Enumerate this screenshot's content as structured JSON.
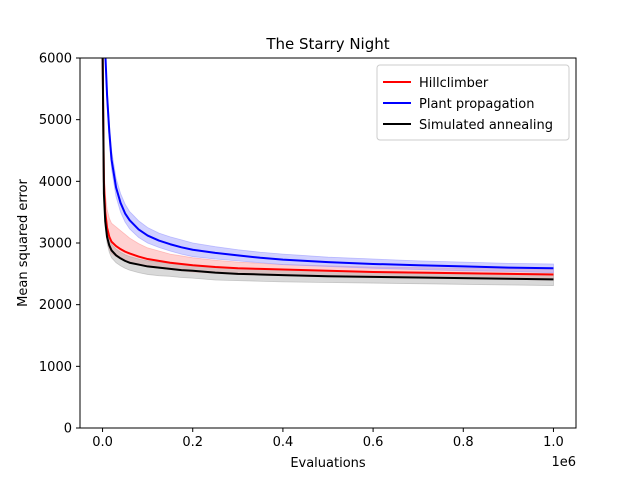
{
  "chart_data": {
    "type": "line",
    "title": "The Starry Night",
    "xlabel": "Evaluations",
    "ylabel": "Mean squared error",
    "x_offset_label": "1e6",
    "xlim": [
      -0.05,
      1.05
    ],
    "ylim": [
      0,
      6000
    ],
    "x_ticks": [
      0.0,
      0.2,
      0.4,
      0.6,
      0.8,
      1.0
    ],
    "x_tick_labels": [
      "0.0",
      "0.2",
      "0.4",
      "0.6",
      "0.8",
      "1.0"
    ],
    "y_ticks": [
      0,
      1000,
      2000,
      3000,
      4000,
      5000,
      6000
    ],
    "y_tick_labels": [
      "0",
      "1000",
      "2000",
      "3000",
      "4000",
      "5000",
      "6000"
    ],
    "grid": false,
    "legend_position": "upper-right",
    "x": [
      0.0,
      0.003,
      0.006,
      0.01,
      0.015,
      0.02,
      0.03,
      0.04,
      0.05,
      0.06,
      0.08,
      0.1,
      0.125,
      0.15,
      0.175,
      0.2,
      0.25,
      0.3,
      0.35,
      0.4,
      0.5,
      0.6,
      0.7,
      0.8,
      0.9,
      1.0
    ],
    "series": [
      {
        "name": "Hillclimber",
        "color": "#ff0000",
        "fill_color": "#ff9999",
        "values": [
          6200,
          4000,
          3500,
          3250,
          3100,
          3020,
          2950,
          2900,
          2860,
          2830,
          2780,
          2740,
          2710,
          2680,
          2660,
          2640,
          2610,
          2590,
          2580,
          2570,
          2550,
          2530,
          2520,
          2510,
          2500,
          2490
        ],
        "upper": [
          6300,
          4300,
          3800,
          3550,
          3400,
          3320,
          3260,
          3200,
          3140,
          3080,
          2990,
          2920,
          2870,
          2820,
          2790,
          2760,
          2720,
          2690,
          2670,
          2650,
          2630,
          2610,
          2600,
          2590,
          2580,
          2570
        ],
        "lower": [
          6100,
          3800,
          3300,
          3050,
          2900,
          2830,
          2780,
          2740,
          2710,
          2680,
          2640,
          2610,
          2590,
          2570,
          2550,
          2530,
          2510,
          2490,
          2480,
          2470,
          2450,
          2440,
          2430,
          2420,
          2410,
          2400
        ]
      },
      {
        "name": "Plant propagation",
        "color": "#0000ff",
        "fill_color": "#9999ff",
        "values": [
          6100,
          6100,
          6100,
          5400,
          4800,
          4350,
          3900,
          3650,
          3480,
          3370,
          3220,
          3120,
          3040,
          2980,
          2930,
          2890,
          2840,
          2800,
          2760,
          2730,
          2690,
          2660,
          2640,
          2620,
          2600,
          2590
        ],
        "upper": [
          6100,
          6100,
          6100,
          5550,
          4950,
          4500,
          4050,
          3800,
          3630,
          3510,
          3360,
          3250,
          3160,
          3100,
          3050,
          3000,
          2940,
          2890,
          2850,
          2820,
          2770,
          2740,
          2710,
          2690,
          2670,
          2660
        ],
        "lower": [
          6100,
          6100,
          6100,
          5250,
          4650,
          4200,
          3750,
          3500,
          3340,
          3230,
          3090,
          3000,
          2930,
          2870,
          2820,
          2780,
          2740,
          2710,
          2680,
          2650,
          2620,
          2590,
          2570,
          2550,
          2540,
          2520
        ]
      },
      {
        "name": "Simulated annealing",
        "color": "#000000",
        "fill_color": "#aaaaaa",
        "values": [
          6200,
          3800,
          3350,
          3100,
          2960,
          2880,
          2800,
          2750,
          2710,
          2680,
          2650,
          2620,
          2600,
          2580,
          2560,
          2550,
          2520,
          2500,
          2490,
          2480,
          2460,
          2450,
          2440,
          2430,
          2420,
          2410
        ],
        "upper": [
          6300,
          3900,
          3450,
          3200,
          3060,
          2980,
          2900,
          2850,
          2810,
          2780,
          2740,
          2710,
          2690,
          2670,
          2650,
          2640,
          2610,
          2590,
          2580,
          2570,
          2550,
          2540,
          2530,
          2520,
          2510,
          2500
        ],
        "lower": [
          6100,
          3700,
          3250,
          3000,
          2850,
          2760,
          2680,
          2630,
          2590,
          2560,
          2520,
          2490,
          2470,
          2460,
          2440,
          2430,
          2400,
          2390,
          2380,
          2370,
          2360,
          2350,
          2340,
          2330,
          2320,
          2310
        ]
      }
    ]
  }
}
